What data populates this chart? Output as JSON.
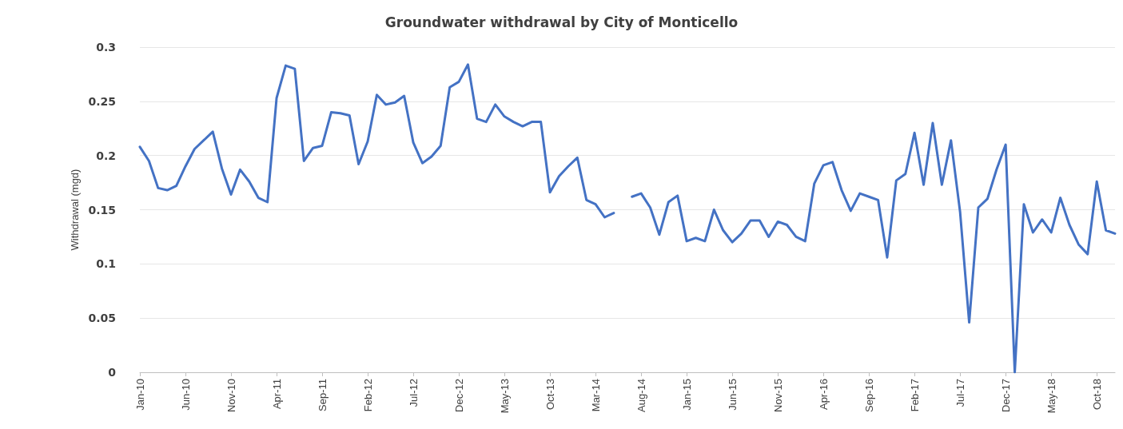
{
  "chart_data": {
    "type": "line",
    "title": "Groundwater withdrawal by City of Monticello",
    "ylabel": "Withdrawal (mgd)",
    "categories": [
      "Jan-10",
      null,
      null,
      null,
      null,
      "Jun-10",
      null,
      null,
      null,
      null,
      "Nov-10",
      null,
      null,
      null,
      null,
      "Apr-11",
      null,
      null,
      null,
      null,
      "Sep-11",
      null,
      null,
      null,
      null,
      "Feb-12",
      null,
      null,
      null,
      null,
      "Jul-12",
      null,
      null,
      null,
      null,
      "Dec-12",
      null,
      null,
      null,
      null,
      "May-13",
      null,
      null,
      null,
      null,
      "Oct-13",
      null,
      null,
      null,
      null,
      "Mar-14",
      null,
      null,
      null,
      null,
      "Aug-14",
      null,
      null,
      null,
      null,
      "Jan-15",
      null,
      null,
      null,
      null,
      "Jun-15",
      null,
      null,
      null,
      null,
      "Nov-15",
      null,
      null,
      null,
      null,
      "Apr-16",
      null,
      null,
      null,
      null,
      "Sep-16",
      null,
      null,
      null,
      null,
      "Feb-17",
      null,
      null,
      null,
      null,
      "Jul-17",
      null,
      null,
      null,
      null,
      "Dec-17",
      null,
      null,
      null,
      null,
      "May-18",
      null,
      null,
      null,
      null,
      "Oct-18",
      null,
      null
    ],
    "series": [
      {
        "color": "#4472c4",
        "values": [
          0.208,
          0.195,
          0.17,
          0.168,
          0.172,
          0.19,
          0.206,
          0.214,
          0.222,
          0.188,
          0.164,
          0.187,
          0.176,
          0.161,
          0.157,
          0.253,
          0.283,
          0.28,
          0.195,
          0.207,
          0.209,
          0.24,
          0.239,
          0.237,
          0.192,
          0.213,
          0.256,
          0.247,
          0.249,
          0.255,
          0.212,
          0.193,
          0.199,
          0.209,
          0.263,
          0.268,
          0.284,
          0.234,
          0.231,
          0.247,
          0.236,
          0.231,
          0.227,
          0.231,
          0.231,
          0.166,
          0.181,
          0.19,
          0.198,
          0.159,
          0.155,
          0.143,
          0.147,
          null,
          0.162,
          0.165,
          0.152,
          0.127,
          0.157,
          0.163,
          0.121,
          0.124,
          0.121,
          0.15,
          0.131,
          0.12,
          0.128,
          0.14,
          0.14,
          0.125,
          0.139,
          0.136,
          0.125,
          0.121,
          0.174,
          0.191,
          0.194,
          0.168,
          0.149,
          0.165,
          0.162,
          0.159,
          0.106,
          0.177,
          0.183,
          0.221,
          0.173,
          0.23,
          0.173,
          0.214,
          0.148,
          0.046,
          0.152,
          0.16,
          0.187,
          0.21,
          0.0,
          0.155,
          0.129,
          0.141,
          0.129,
          0.161,
          0.136,
          0.118,
          0.109,
          0.176,
          0.131,
          0.128
        ]
      }
    ],
    "ylim": [
      0,
      0.3
    ],
    "yticks": [
      0,
      0.05,
      0.1,
      0.15,
      0.2,
      0.25,
      0.3
    ],
    "grid": "y",
    "marker": "none",
    "line_style": "solid"
  }
}
